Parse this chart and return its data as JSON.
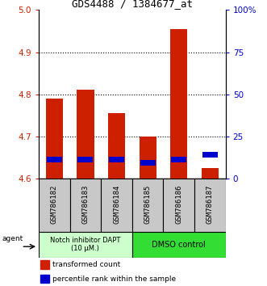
{
  "title": "GDS4488 / 1384677_at",
  "samples": [
    "GSM786182",
    "GSM786183",
    "GSM786184",
    "GSM786185",
    "GSM786186",
    "GSM786187"
  ],
  "red_values": [
    4.79,
    4.812,
    4.755,
    4.7,
    4.955,
    4.625
  ],
  "blue_values": [
    4.645,
    4.645,
    4.645,
    4.638,
    4.645,
    4.657
  ],
  "ymin": 4.6,
  "ymax": 5.0,
  "yticks_left": [
    4.6,
    4.7,
    4.8,
    4.9,
    5.0
  ],
  "yticks_right": [
    0,
    25,
    50,
    75,
    100
  ],
  "yright_min": 0,
  "yright_max": 100,
  "grid_vals": [
    4.7,
    4.8,
    4.9
  ],
  "group1_label": "Notch inhibitor DAPT\n(10 μM.)",
  "group2_label": "DMSO control",
  "legend1": "transformed count",
  "legend2": "percentile rank within the sample",
  "agent_label": "agent",
  "bar_width": 0.55,
  "red_color": "#cc2000",
  "blue_color": "#0000cc",
  "group_bg_color": "#c8c8c8",
  "group1_bg": "#ccffcc",
  "group2_bg": "#33dd33",
  "title_fontsize": 9,
  "tick_fontsize": 7.5,
  "label_fontsize": 6.5
}
